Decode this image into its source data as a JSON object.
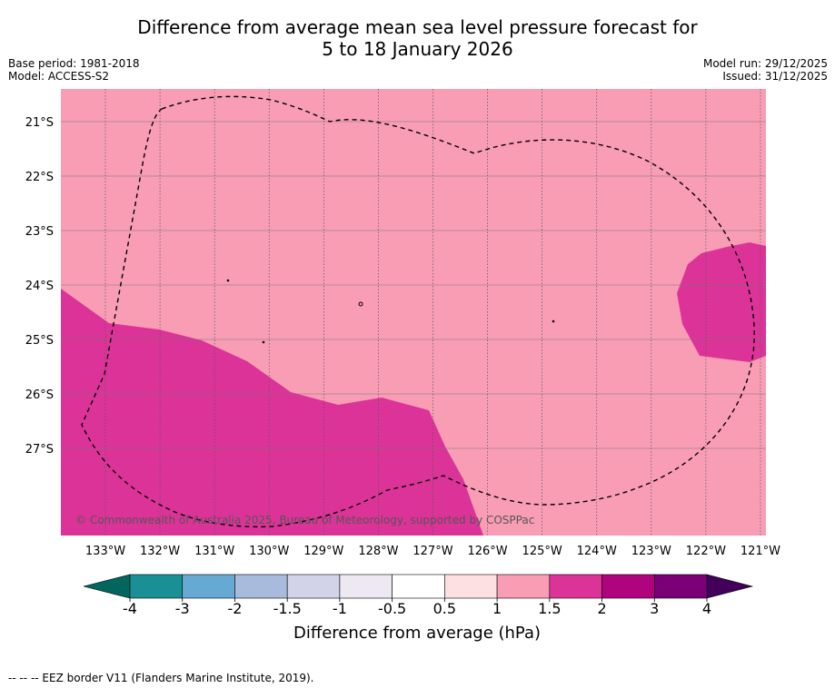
{
  "title_line1": "Difference from average mean sea level pressure forecast for",
  "title_line2": "5 to 18 January 2026",
  "base_period": "Base period: 1981-2018",
  "model": "Model: ACCESS-S2",
  "model_run": "Model run: 29/12/2025",
  "issued": "Issued: 31/12/2025",
  "copyright": "© Commonwealth of Australia 2025, Bureau of Meteorology, supported by COSPPac",
  "footnote": "--  --  -- EEZ border V11 (Flanders Marine Institute, 2019).",
  "colorbar": {
    "label": "Difference from average (hPa)",
    "tick_labels": [
      "-4",
      "-3",
      "-2",
      "-1.5",
      "-1",
      "-0.5",
      "0.5",
      "1",
      "1.5",
      "2",
      "3",
      "4"
    ],
    "colors": [
      "#1b8f96",
      "#66a9d2",
      "#a8bbdc",
      "#d2d3e8",
      "#ede8f1",
      "#ffffff",
      "#fde0e1",
      "#f99db5",
      "#dc3399",
      "#b0047f",
      "#7b0077"
    ],
    "under_color": "#03665e",
    "over_color": "#43005a"
  },
  "map": {
    "lon_labels": [
      "133°W",
      "132°W",
      "131°W",
      "130°W",
      "129°W",
      "128°W",
      "127°W",
      "126°W",
      "125°W",
      "124°W",
      "123°W",
      "122°W",
      "121°W"
    ],
    "lat_labels": [
      "21°S",
      "22°S",
      "23°S",
      "24°S",
      "25°S",
      "26°S",
      "27°S"
    ],
    "background_color": "#f99db5",
    "region_color": "#dc3399"
  }
}
